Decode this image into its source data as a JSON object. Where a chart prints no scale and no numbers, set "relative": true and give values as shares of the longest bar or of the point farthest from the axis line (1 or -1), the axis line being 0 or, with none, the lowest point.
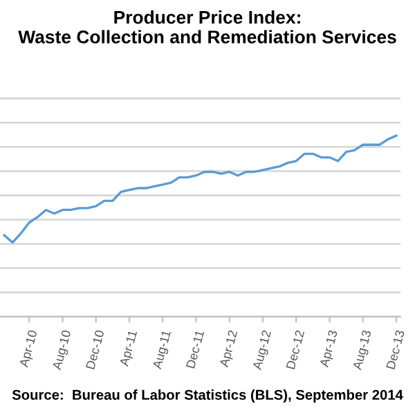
{
  "chart_data": {
    "type": "line",
    "title": "Producer Price Index:\nWaste Collection and Remediation Services",
    "relative": true,
    "grid": "y",
    "marker": "none",
    "line_style": "solid",
    "categories": [
      null,
      null,
      null,
      "Apr-10",
      null,
      null,
      null,
      "Aug-10",
      null,
      null,
      null,
      "Dec-10",
      null,
      null,
      null,
      "Apr-11",
      null,
      null,
      null,
      "Aug-11",
      null,
      null,
      null,
      "Dec-11",
      null,
      null,
      null,
      "Apr-12",
      null,
      null,
      null,
      "Aug-12",
      null,
      null,
      null,
      "Dec-12",
      null,
      null,
      null,
      "Apr-13",
      null,
      null,
      null,
      "Aug-13",
      null,
      null,
      null,
      "Dec-13"
    ],
    "series": [
      {
        "color": "#5b9bd5",
        "values": [
          0.45,
          0.41,
          0.46,
          0.52,
          0.55,
          0.59,
          0.57,
          0.59,
          0.59,
          0.6,
          0.6,
          0.61,
          0.64,
          0.64,
          0.69,
          0.7,
          0.71,
          0.71,
          0.72,
          0.73,
          0.74,
          0.77,
          0.77,
          0.78,
          0.8,
          0.8,
          0.79,
          0.8,
          0.78,
          0.8,
          0.8,
          0.81,
          0.82,
          0.83,
          0.85,
          0.86,
          0.9,
          0.9,
          0.88,
          0.88,
          0.86,
          0.91,
          0.92,
          0.95,
          0.95,
          0.95,
          0.98,
          1.0
        ]
      }
    ],
    "annotations": [
      "Source:  Bureau of Labor Statistics (BLS), September 2014"
    ]
  }
}
